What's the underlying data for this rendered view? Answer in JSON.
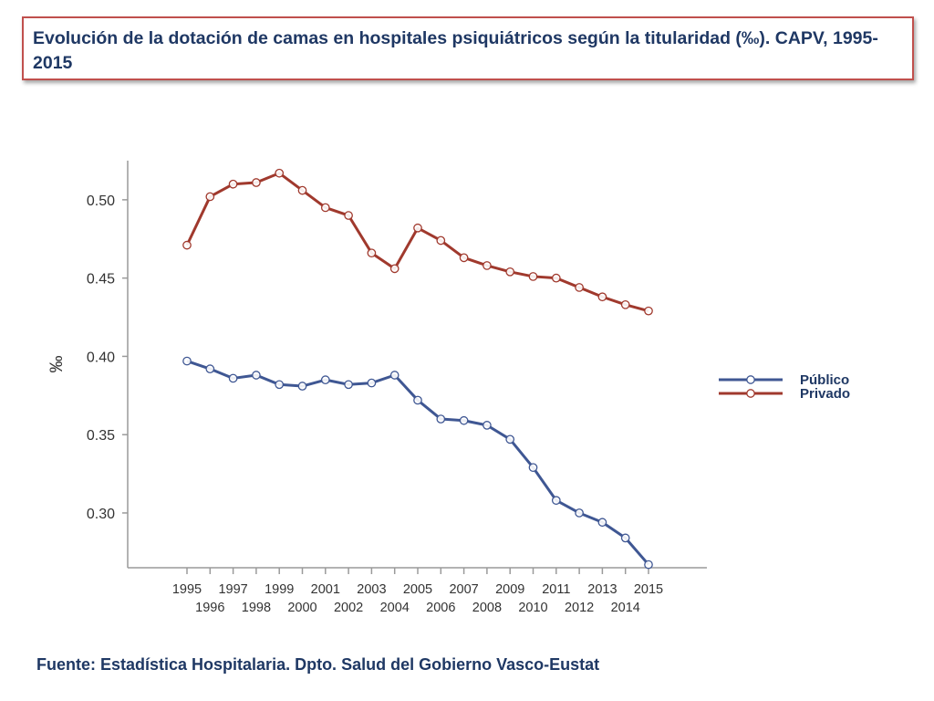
{
  "header": {
    "title": "Evolución de la dotación de camas en hospitales psiquiátricos según la titularidad (‰). CAPV, 1995-2015"
  },
  "footer": {
    "source": "Fuente: Estadística Hospitalaria. Dpto. Salud del Gobierno Vasco-Eustat"
  },
  "colors": {
    "publico": "#3f5793",
    "privado": "#a0392d",
    "axis": "#9a9a9a",
    "tick_text": "#333333",
    "title_border": "#c0504d",
    "title_text": "#1f3864"
  },
  "chart_data": {
    "type": "line",
    "title": "",
    "xlabel": "",
    "ylabel": "‰",
    "ylim": [
      0.265,
      0.525
    ],
    "yticks": [
      0.3,
      0.35,
      0.4,
      0.45,
      0.5
    ],
    "ytick_labels": [
      "0.30",
      "0.35",
      "0.40",
      "0.45",
      "0.50"
    ],
    "grid": false,
    "legend_position": "right",
    "x": [
      "1995",
      "1996",
      "1997",
      "1998",
      "1999",
      "2000",
      "2001",
      "2002",
      "2003",
      "2004",
      "2005",
      "2006",
      "2007",
      "2008",
      "2009",
      "2010",
      "2011",
      "2012",
      "2013",
      "2014",
      "2015"
    ],
    "series": [
      {
        "name": "Público",
        "color_key": "publico",
        "values": [
          0.397,
          0.392,
          0.386,
          0.388,
          0.382,
          0.381,
          0.385,
          0.382,
          0.383,
          0.388,
          0.372,
          0.36,
          0.359,
          0.356,
          0.347,
          0.329,
          0.308,
          0.3,
          0.294,
          0.284,
          0.267
        ]
      },
      {
        "name": "Privado",
        "color_key": "privado",
        "values": [
          0.471,
          0.502,
          0.51,
          0.511,
          0.517,
          0.506,
          0.495,
          0.49,
          0.466,
          0.456,
          0.482,
          0.474,
          0.463,
          0.458,
          0.454,
          0.451,
          0.45,
          0.444,
          0.438,
          0.433,
          0.429
        ]
      }
    ]
  }
}
